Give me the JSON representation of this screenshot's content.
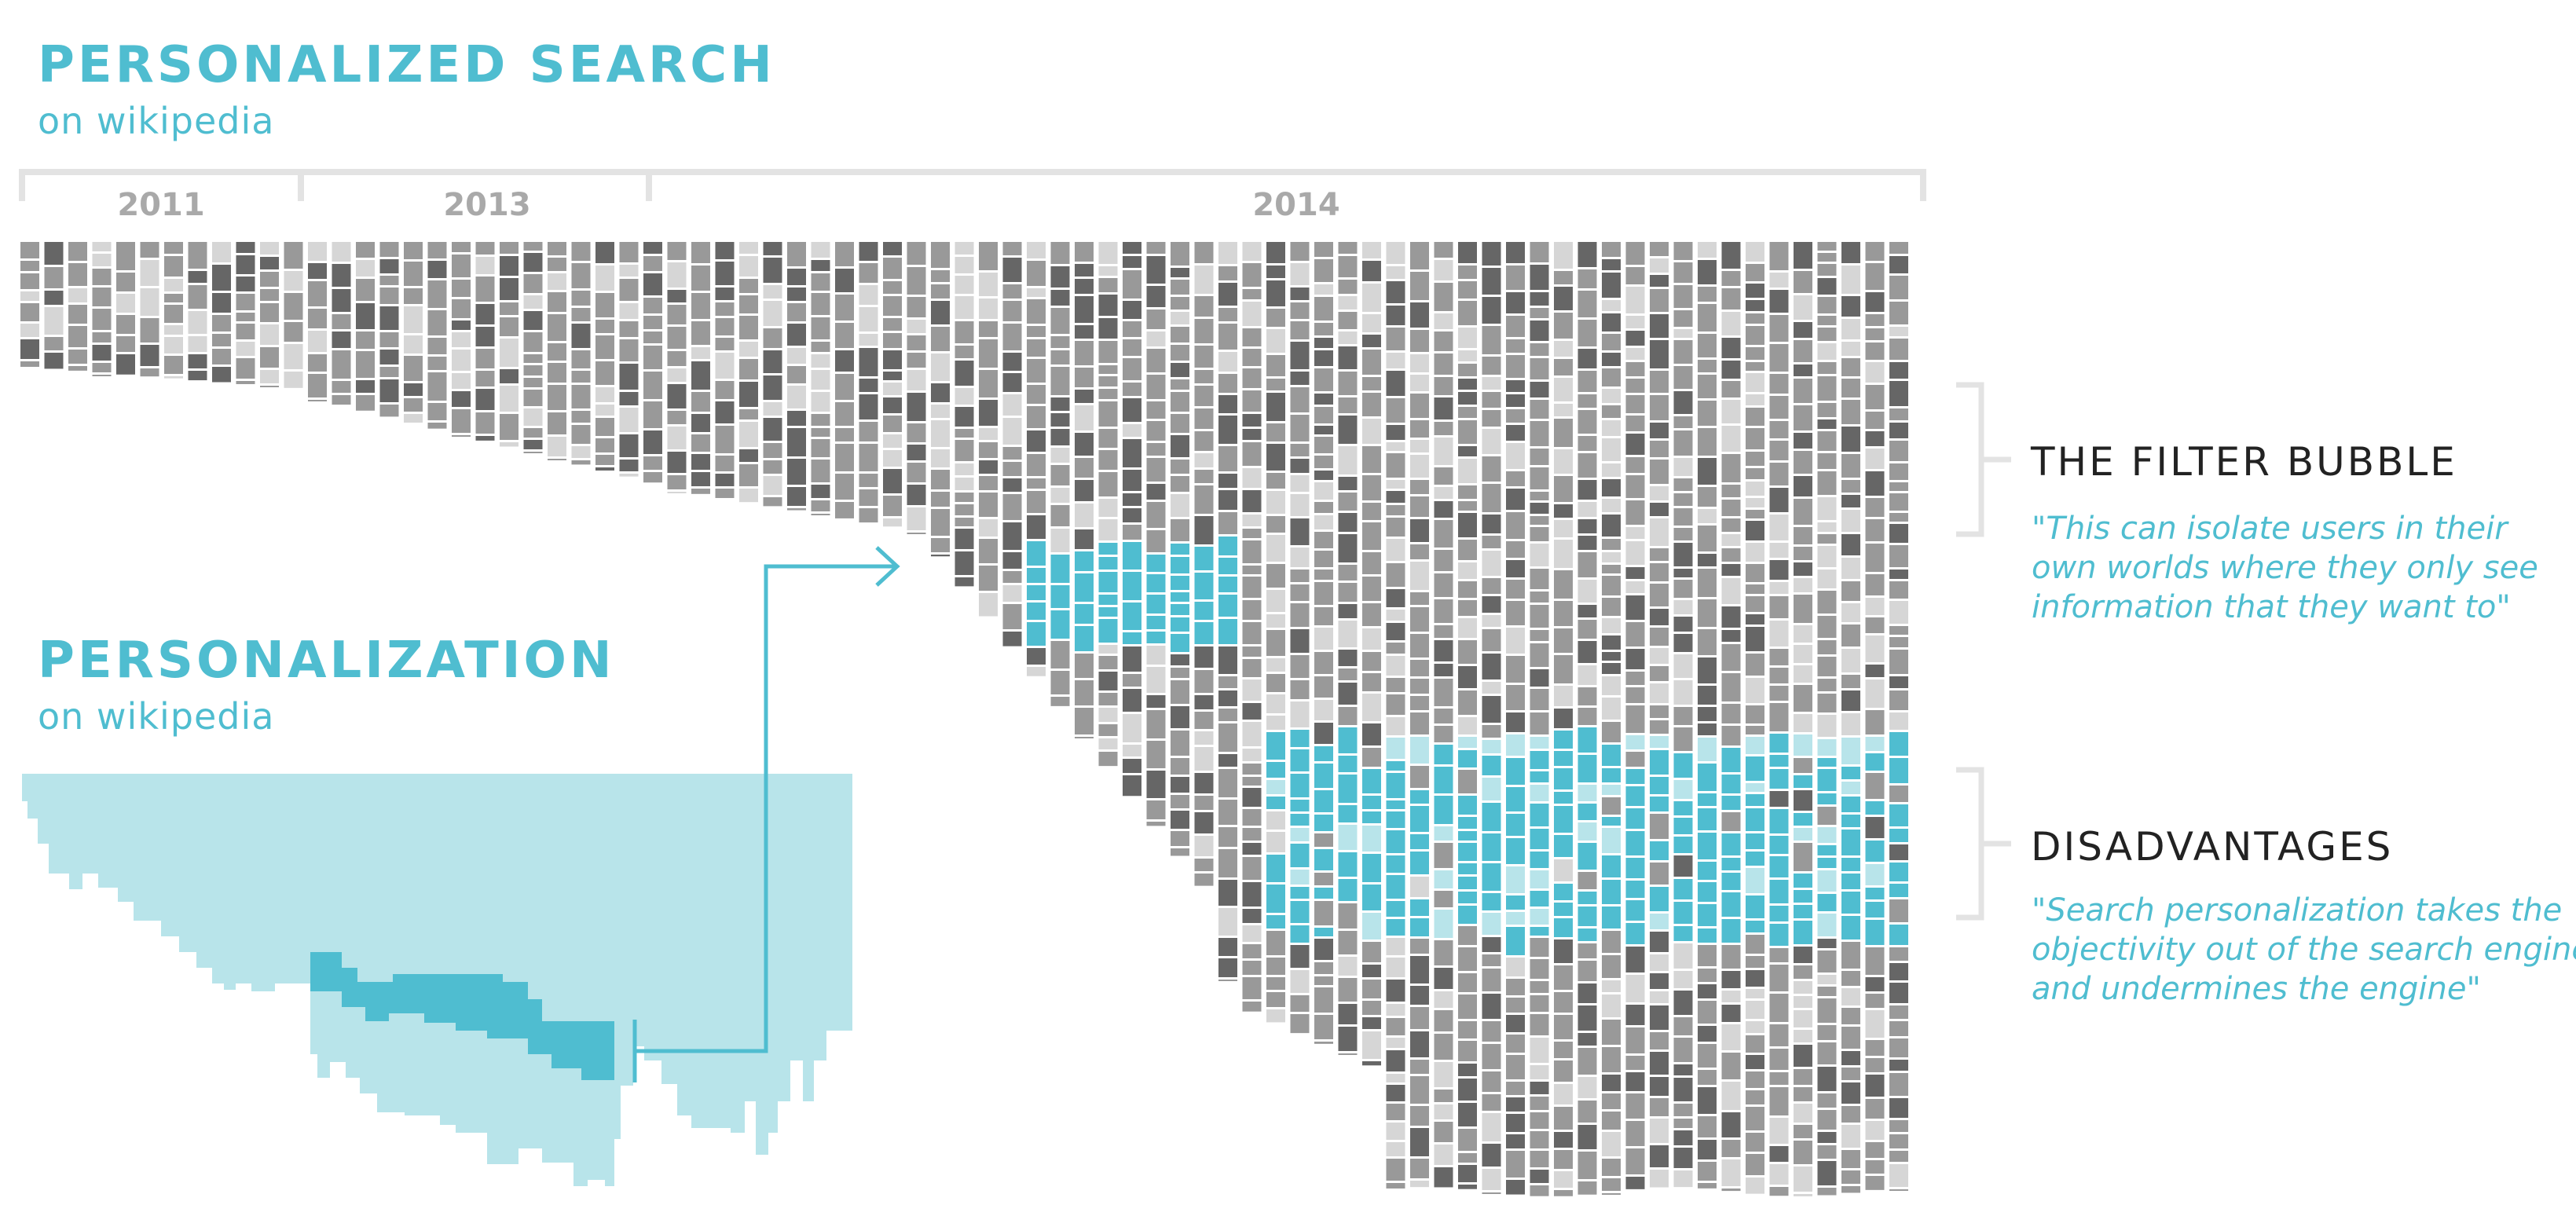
{
  "colors": {
    "accent": "#4fbdd0",
    "accent_light": "#b8e4ea",
    "dark": "#666666",
    "mid": "#999999",
    "light": "#d6d6d6",
    "rule": "#e3e3e3",
    "year_text": "#a9a9a9",
    "heading_text": "#222222"
  },
  "search_block": {
    "title": "PERSONALIZED SEARCH",
    "subtitle": "on wikipedia"
  },
  "personalization_block": {
    "title": "PERSONALIZATION",
    "subtitle": "on wikipedia"
  },
  "timeline": {
    "years": [
      "2011",
      "2013",
      "2014"
    ]
  },
  "annotations": [
    {
      "heading": "THE FILTER BUBBLE",
      "quote_lines": [
        "\"This can isolate users in their",
        "own worlds where they only see",
        "information that they want to\""
      ]
    },
    {
      "heading": "DISADVANTAGES",
      "quote_lines": [
        "\"Search personalization takes the",
        "objectivity out of the search engine",
        "and undermines the engine\""
      ]
    }
  ]
}
